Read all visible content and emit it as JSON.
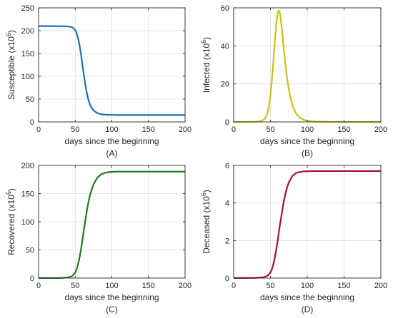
{
  "chart_data": [
    {
      "type": "line",
      "ylabel": "Susceptible (x10",
      "ylabel_exp": "6",
      "ylabel_close": ")",
      "xlabel": "days since the beginning",
      "caption": "(A)",
      "xlim": [
        0,
        200
      ],
      "ylim": [
        0,
        250
      ],
      "xticks": [
        0,
        50,
        100,
        150,
        200
      ],
      "yticks": [
        0,
        50,
        100,
        150,
        200,
        250
      ],
      "grid": true,
      "color": "#1f6fb5",
      "series": [
        {
          "x": [
            0,
            20,
            40,
            45,
            48,
            50,
            52,
            54,
            56,
            58,
            60,
            62,
            64,
            66,
            68,
            70,
            72,
            75,
            80,
            85,
            90,
            95,
            100,
            110,
            120,
            150,
            200
          ],
          "y": [
            210,
            210,
            209.5,
            208,
            205,
            201,
            194,
            183,
            167,
            147,
            124,
            101,
            80,
            62,
            49,
            39,
            32,
            25,
            19.5,
            17,
            16,
            15.5,
            15.3,
            15.1,
            15,
            15,
            15
          ]
        }
      ]
    },
    {
      "type": "line",
      "ylabel": "Infected (x10",
      "ylabel_exp": "6",
      "ylabel_close": ")",
      "xlabel": "days since the beginning",
      "caption": "(B)",
      "xlim": [
        0,
        200
      ],
      "ylim": [
        0,
        60
      ],
      "xticks": [
        0,
        50,
        100,
        150,
        200
      ],
      "yticks": [
        0,
        20,
        40,
        60
      ],
      "grid": true,
      "color": "#c9c01a",
      "series": [
        {
          "x": [
            0,
            30,
            38,
            42,
            45,
            48,
            50,
            52,
            54,
            56,
            58,
            60,
            61,
            62,
            63,
            64,
            66,
            68,
            70,
            72,
            75,
            78,
            80,
            85,
            90,
            95,
            100,
            110,
            120,
            150,
            200
          ],
          "y": [
            0,
            0.1,
            0.6,
            1.5,
            3.5,
            8,
            14,
            22,
            32,
            43,
            52,
            57.5,
            58.5,
            58.3,
            57,
            54,
            47,
            39,
            31.5,
            25,
            17,
            11.5,
            8.5,
            4.3,
            2.2,
            1.1,
            0.6,
            0.2,
            0.1,
            0,
            0
          ]
        }
      ]
    },
    {
      "type": "line",
      "ylabel": "Recovered (x10",
      "ylabel_exp": "6",
      "ylabel_close": ")",
      "xlabel": "days since the beginning",
      "caption": "(C)",
      "xlim": [
        0,
        200
      ],
      "ylim": [
        0,
        200
      ],
      "xticks": [
        0,
        50,
        100,
        150,
        200
      ],
      "yticks": [
        0,
        50,
        100,
        150,
        200
      ],
      "grid": true,
      "color": "#1e7a1e",
      "series": [
        {
          "x": [
            0,
            30,
            40,
            45,
            48,
            50,
            52,
            54,
            56,
            58,
            60,
            62,
            64,
            66,
            68,
            70,
            72,
            75,
            80,
            85,
            90,
            95,
            100,
            110,
            120,
            150,
            200
          ],
          "y": [
            0,
            0.2,
            1,
            3,
            6,
            10,
            16,
            25,
            37,
            52,
            69,
            87,
            104,
            120,
            134,
            146,
            155,
            166,
            178,
            184,
            186.5,
            188,
            188.6,
            189,
            189,
            189,
            189
          ]
        }
      ]
    },
    {
      "type": "line",
      "ylabel": "Deceased (x10",
      "ylabel_exp": "6",
      "ylabel_close": ")",
      "xlabel": "days since the beginning",
      "caption": "(D)",
      "xlim": [
        0,
        200
      ],
      "ylim": [
        0,
        6
      ],
      "xticks": [
        0,
        50,
        100,
        150,
        200
      ],
      "yticks": [
        0,
        2,
        4,
        6
      ],
      "grid": true,
      "color": "#a3142c",
      "series": [
        {
          "x": [
            0,
            30,
            40,
            45,
            48,
            50,
            52,
            54,
            56,
            58,
            60,
            62,
            64,
            66,
            68,
            70,
            72,
            75,
            80,
            85,
            90,
            95,
            100,
            110,
            120,
            150,
            200
          ],
          "y": [
            0,
            0.01,
            0.04,
            0.1,
            0.19,
            0.3,
            0.48,
            0.75,
            1.1,
            1.55,
            2.05,
            2.6,
            3.1,
            3.6,
            4.05,
            4.45,
            4.75,
            5.1,
            5.45,
            5.6,
            5.65,
            5.68,
            5.69,
            5.7,
            5.7,
            5.7,
            5.7
          ]
        }
      ]
    }
  ]
}
